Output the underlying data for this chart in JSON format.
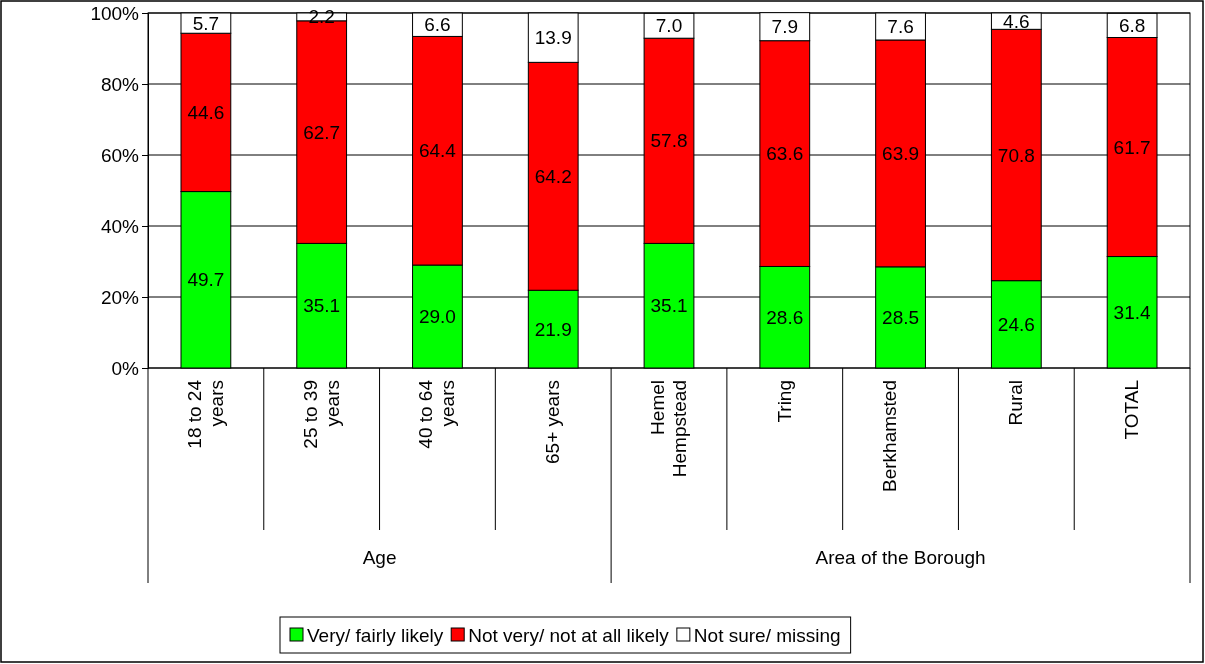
{
  "chart_data": {
    "type": "bar",
    "stacked": true,
    "categories": [
      "18 to 24 years",
      "25 to 39 years",
      "40 to 64 years",
      "65+ years",
      "Hemel Hempstead",
      "Tring",
      "Berkhamsted",
      "Rural",
      "TOTAL"
    ],
    "annotations": [
      "Age",
      "Area of the Borough"
    ],
    "series": [
      {
        "name": "Very/ fairly likely",
        "color": "#00ff00",
        "values": [
          49.7,
          35.1,
          29.0,
          21.9,
          35.1,
          28.6,
          28.5,
          24.6,
          31.4
        ],
        "value_labels": [
          "49.7",
          "35.1",
          "29.0",
          "21.9",
          "35.1",
          "28.6",
          "28.5",
          "24.6",
          "31.4"
        ]
      },
      {
        "name": "Not very/ not at all likely",
        "color": "#ff0000",
        "values": [
          44.6,
          62.7,
          64.4,
          64.2,
          57.8,
          63.6,
          63.9,
          70.8,
          61.7
        ],
        "value_labels": [
          "44.6",
          "62.7",
          "64.4",
          "64.2",
          "57.8",
          "63.6",
          "63.9",
          "70.8",
          "61.7"
        ]
      },
      {
        "name": "Not sure/ missing",
        "color": "#ffffff",
        "values": [
          5.7,
          2.2,
          6.6,
          13.9,
          7.0,
          7.9,
          7.6,
          4.6,
          6.8
        ],
        "value_labels": [
          "5.7",
          "2.2",
          "6.6",
          "13.9",
          "7.0",
          "7.9",
          "7.6",
          "4.6",
          "6.8"
        ]
      }
    ],
    "ylim": [
      0,
      100
    ],
    "yticks": [
      {
        "value": 0,
        "label": "0%"
      },
      {
        "value": 20,
        "label": "20%"
      },
      {
        "value": 40,
        "label": "40%"
      },
      {
        "value": 60,
        "label": "60%"
      },
      {
        "value": 80,
        "label": "80%"
      },
      {
        "value": 100,
        "label": "100%"
      }
    ],
    "grid": "y",
    "legend": "bottom"
  }
}
